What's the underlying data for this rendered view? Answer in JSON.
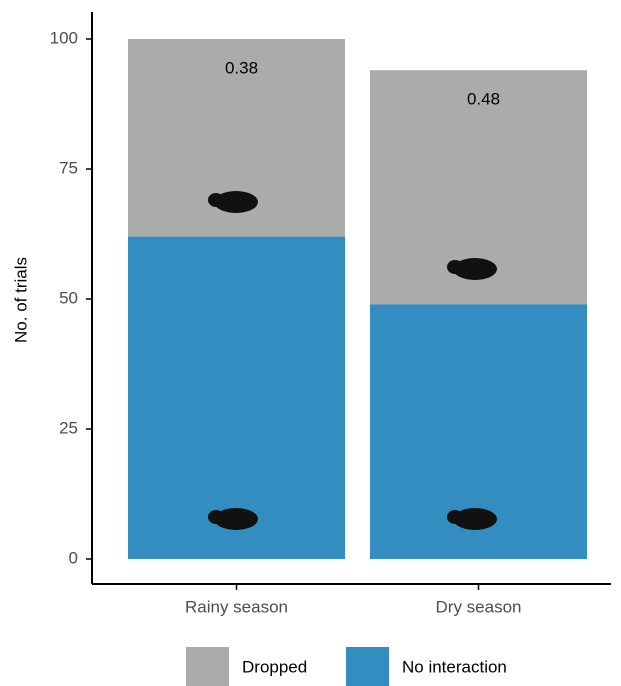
{
  "chart_data": {
    "type": "stacked_bar",
    "y_label": "No. of trials",
    "categories": [
      "Rainy season",
      "Dry season"
    ],
    "series": [
      {
        "name": "Dropped",
        "color": "#ababab",
        "values": [
          38,
          45
        ]
      },
      {
        "name": "No interaction",
        "color": "#348dc1",
        "values": [
          62,
          49
        ]
      }
    ],
    "annotations": [
      "0.38",
      "0.48"
    ],
    "ylim": [
      0,
      100
    ],
    "yticks": [
      0,
      25,
      50,
      75,
      100
    ],
    "grid": false,
    "legend": "bottom"
  }
}
